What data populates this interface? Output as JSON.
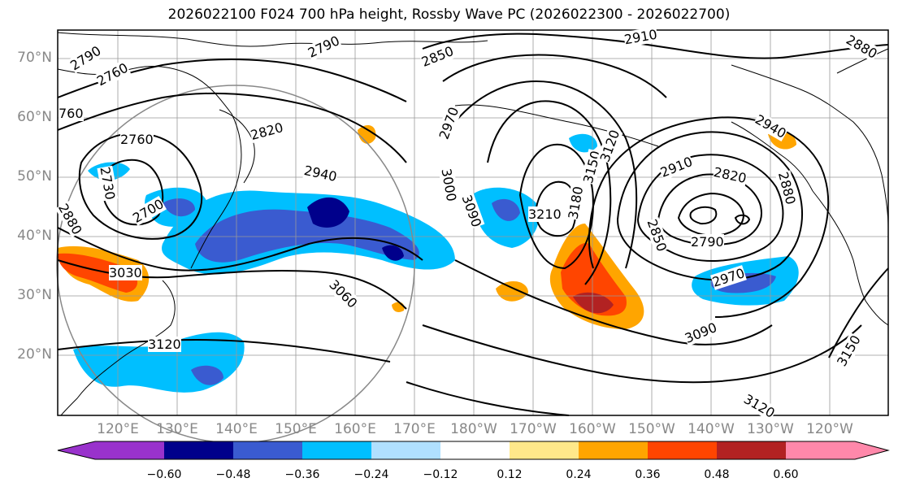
{
  "title": "2026022100 F024 700 hPa height, Rossby Wave PC (2026022300 - 2026022700)",
  "map": {
    "lat_labels": [
      "70°N",
      "60°N",
      "50°N",
      "40°N",
      "30°N",
      "20°N"
    ],
    "lon_labels": [
      "120°E",
      "130°E",
      "140°E",
      "150°E",
      "160°E",
      "170°E",
      "180°W",
      "170°W",
      "160°W",
      "150°W",
      "140°W",
      "130°W",
      "120°W"
    ],
    "contour_labels": [
      "2790",
      "2760",
      "2790",
      "2850",
      "2910",
      "2880",
      "760",
      "2760",
      "2820",
      "2970",
      "2940",
      "3000",
      "3210",
      "3150",
      "3120",
      "3180",
      "3090",
      "2850",
      "2790",
      "2820",
      "2910",
      "2940",
      "2880",
      "2970",
      "3030",
      "3060",
      "3120",
      "3090",
      "3150",
      "3120",
      "2700",
      "2880",
      "2730"
    ]
  },
  "colorbar": {
    "ticks": [
      "−0.60",
      "−0.48",
      "−0.36",
      "−0.24",
      "−0.12",
      "0.12",
      "0.24",
      "0.36",
      "0.48",
      "0.60"
    ],
    "colors": [
      "#9932cc",
      "#00008b",
      "#3a5bd0",
      "#00bfff",
      "#b0e0ff",
      "#ffffff",
      "#ffe88a",
      "#ffa500",
      "#ff4500",
      "#b22222",
      "#ff88aa"
    ]
  }
}
